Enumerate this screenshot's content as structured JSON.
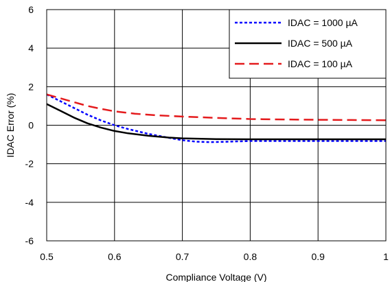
{
  "chart_data": {
    "type": "line",
    "title": "",
    "xlabel": "Compliance Voltage (V)",
    "ylabel": "IDAC Error (%)",
    "xlim": [
      0.5,
      1.0
    ],
    "ylim": [
      -6,
      6
    ],
    "xticks": [
      "0.5",
      "0.6",
      "0.7",
      "0.8",
      "0.9",
      "1"
    ],
    "yticks": [
      "-6",
      "-4",
      "-2",
      "0",
      "2",
      "4",
      "6"
    ],
    "grid": true,
    "legend_position": "top-right",
    "series": [
      {
        "name": "IDAC = 1000 µA",
        "color": "#0000ff",
        "style": "dotted",
        "x": [
          0.5,
          0.52,
          0.54,
          0.56,
          0.58,
          0.6,
          0.62,
          0.65,
          0.68,
          0.7,
          0.72,
          0.74,
          0.76,
          0.8,
          0.85,
          0.9,
          0.95,
          1.0
        ],
        "y": [
          1.6,
          1.25,
          0.9,
          0.55,
          0.25,
          0.0,
          -0.2,
          -0.45,
          -0.65,
          -0.78,
          -0.85,
          -0.88,
          -0.86,
          -0.82,
          -0.82,
          -0.82,
          -0.82,
          -0.82
        ]
      },
      {
        "name": "IDAC = 500 µA",
        "color": "#000000",
        "style": "solid",
        "x": [
          0.5,
          0.52,
          0.54,
          0.56,
          0.58,
          0.6,
          0.62,
          0.65,
          0.68,
          0.7,
          0.75,
          0.8,
          0.85,
          0.9,
          0.95,
          1.0
        ],
        "y": [
          1.1,
          0.75,
          0.4,
          0.1,
          -0.12,
          -0.3,
          -0.42,
          -0.55,
          -0.64,
          -0.68,
          -0.72,
          -0.73,
          -0.73,
          -0.73,
          -0.73,
          -0.73
        ]
      },
      {
        "name": "IDAC = 100 µA",
        "color": "#e41a1c",
        "style": "dashed",
        "x": [
          0.5,
          0.52,
          0.54,
          0.56,
          0.58,
          0.6,
          0.63,
          0.66,
          0.7,
          0.75,
          0.8,
          0.85,
          0.9,
          0.95,
          1.0
        ],
        "y": [
          1.6,
          1.4,
          1.2,
          1.0,
          0.85,
          0.72,
          0.6,
          0.52,
          0.45,
          0.38,
          0.32,
          0.3,
          0.28,
          0.27,
          0.26
        ]
      }
    ]
  }
}
